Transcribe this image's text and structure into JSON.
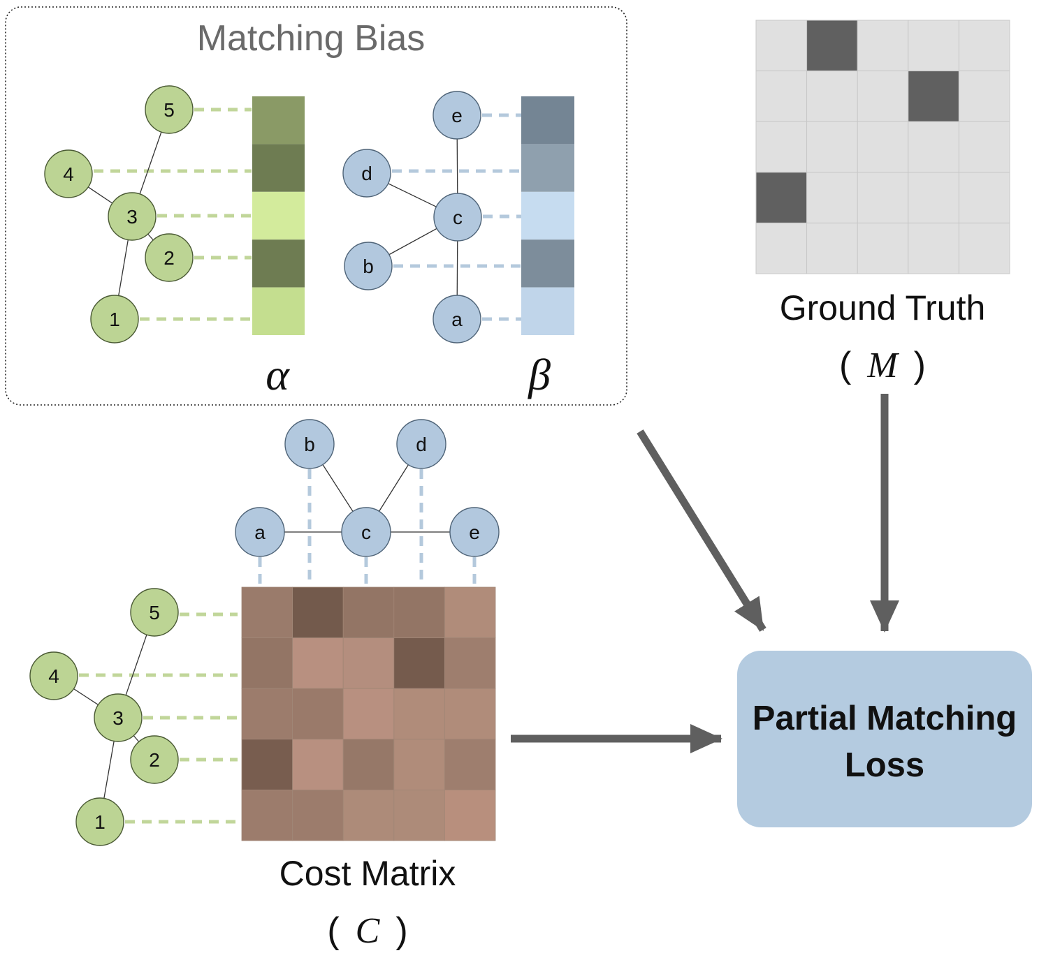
{
  "matching_bias": {
    "title": "Matching Bias",
    "alpha_label": "α",
    "beta_label": "β"
  },
  "graph_green": {
    "nodes": [
      "1",
      "2",
      "3",
      "4",
      "5"
    ],
    "edges": [
      [
        "5",
        "3"
      ],
      [
        "4",
        "3"
      ],
      [
        "3",
        "2"
      ],
      [
        "3",
        "1"
      ]
    ]
  },
  "graph_blue": {
    "nodes": [
      "a",
      "b",
      "c",
      "d",
      "e"
    ],
    "edges": [
      [
        "e",
        "c"
      ],
      [
        "d",
        "c"
      ],
      [
        "b",
        "c"
      ],
      [
        "c",
        "a"
      ]
    ]
  },
  "alpha_colors": [
    "#8a9a66",
    "#6e7c52",
    "#d3eb9c",
    "#6e7c52",
    "#c4de8f"
  ],
  "beta_colors": [
    "#748594",
    "#8fa0ae",
    "#c6dcf0",
    "#7d8d9b",
    "#c0d5ea"
  ],
  "ground_truth": {
    "label": "Ground Truth",
    "symbol": "M",
    "rows": 5,
    "cols": 5,
    "cells": [
      [
        0,
        1,
        0,
        0,
        0
      ],
      [
        0,
        0,
        0,
        1,
        0
      ],
      [
        0,
        0,
        0,
        0,
        0
      ],
      [
        1,
        0,
        0,
        0,
        0
      ],
      [
        0,
        0,
        0,
        0,
        0
      ]
    ],
    "on_color": "#606060",
    "off_color": "#e0e0e0"
  },
  "cost_matrix": {
    "label": "Cost Matrix",
    "symbol": "C",
    "colors": [
      [
        "#9a7b6b",
        "#735a4c",
        "#937565",
        "#937565",
        "#b08c7a"
      ],
      [
        "#937565",
        "#b89080",
        "#b48e7e",
        "#755b4d",
        "#9e7e6e"
      ],
      [
        "#9c7c6c",
        "#9a7a6a",
        "#b89080",
        "#b08c7a",
        "#b08c7a"
      ],
      [
        "#785d4f",
        "#b89080",
        "#967868",
        "#b08c7a",
        "#9e7e6e"
      ],
      [
        "#9c7c6c",
        "#9c7c6c",
        "#ad8b79",
        "#ad8b79",
        "#b88f7d"
      ]
    ]
  },
  "loss_box": {
    "line1": "Partial Matching",
    "line2": "Loss"
  },
  "colors": {
    "green_node": "#bcd494",
    "blue_node": "#b2c8de",
    "green_dash": "#c1d69a",
    "blue_dash": "#b4c9dc",
    "arrow": "#5f5f5f",
    "loss_fill": "#b4cbe0",
    "title_gray": "#6a6a6a"
  },
  "paren_open": "(",
  "paren_close": ")"
}
